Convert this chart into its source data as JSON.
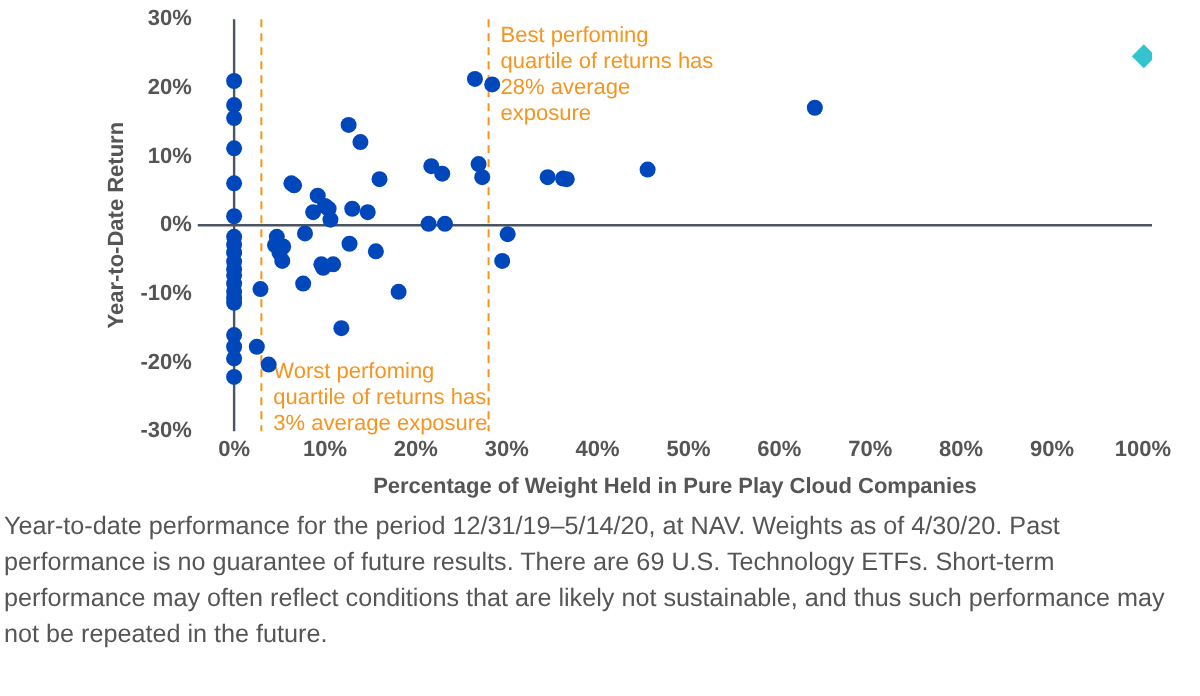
{
  "chart_data": {
    "type": "scatter",
    "xlabel": "Percentage of Weight Held in Pure Play Cloud Companies",
    "ylabel": "Year-to-Date Return",
    "xlim": [
      -4,
      101
    ],
    "ylim": [
      -30,
      30
    ],
    "xticks": [
      {
        "value": 0,
        "label": "0%"
      },
      {
        "value": 10,
        "label": "10%"
      },
      {
        "value": 20,
        "label": "20%"
      },
      {
        "value": 30,
        "label": "30%"
      },
      {
        "value": 40,
        "label": "40%"
      },
      {
        "value": 50,
        "label": "50%"
      },
      {
        "value": 60,
        "label": "60%"
      },
      {
        "value": 70,
        "label": "70%"
      },
      {
        "value": 80,
        "label": "80%"
      },
      {
        "value": 90,
        "label": "90%"
      },
      {
        "value": 100,
        "label": "100%"
      }
    ],
    "yticks": [
      {
        "value": -30,
        "label": "-30%"
      },
      {
        "value": -20,
        "label": "-20%"
      },
      {
        "value": -10,
        "label": "-10%"
      },
      {
        "value": 0,
        "label": "0%"
      },
      {
        "value": 10,
        "label": "10%"
      },
      {
        "value": 20,
        "label": "20%"
      },
      {
        "value": 30,
        "label": "30%"
      }
    ],
    "grid": false,
    "legend": false,
    "series": [
      {
        "color": "#0047bb",
        "marker": "circle",
        "x": [
          0,
          0,
          0,
          0,
          0,
          0,
          0,
          0,
          0,
          0,
          0,
          0,
          0,
          0,
          0,
          0,
          0,
          0,
          0,
          0,
          2.9,
          2.5,
          3.8,
          4.7,
          4.5,
          5.4,
          5,
          5.3,
          6.3,
          6.6,
          7.6,
          7.8,
          8.7,
          9.2,
          10,
          10.6,
          10.4,
          9.6,
          9.8,
          10.9,
          11.8,
          12.6,
          12.7,
          13,
          13.9,
          14.7,
          15.6,
          16,
          18.1,
          21.4,
          23.2,
          21.7,
          22.9,
          26.5,
          28.4,
          26.9,
          27.3,
          30.1,
          29.5,
          34.5,
          36.2,
          36.6,
          45.5,
          63.9
        ],
        "values": [
          21,
          17.5,
          15.6,
          11.2,
          6.1,
          1.3,
          -1.7,
          -2.8,
          -4,
          -5.3,
          -6.4,
          -7.3,
          -8.5,
          -9.7,
          -10.6,
          -11.3,
          -16,
          -17.7,
          -19.4,
          -22.1,
          -9.3,
          -17.7,
          -20.3,
          -1.7,
          -2.9,
          -3.1,
          -4,
          -5.2,
          6.1,
          5.8,
          -8.5,
          -1.2,
          1.9,
          4.3,
          2.8,
          0.8,
          2.4,
          -5.7,
          -6.2,
          -5.7,
          -15,
          14.6,
          -2.7,
          2.4,
          12.1,
          1.9,
          -3.8,
          6.7,
          -9.7,
          0.2,
          0.2,
          8.6,
          7.5,
          21.3,
          20.5,
          8.9,
          7,
          -1.3,
          -5.2,
          7,
          6.8,
          6.7,
          8.1,
          17.1
        ]
      },
      {
        "color": "#33c4d0",
        "marker": "diamond",
        "x": [
          100.1
        ],
        "values": [
          24.6
        ]
      }
    ],
    "ref_lines": [
      {
        "axis": "y",
        "value": 0,
        "color": "#4a5560",
        "line_style": "solid"
      },
      {
        "axis": "x",
        "value": 3,
        "label": "Worst perfoming quartile of returns has 3% average exposure",
        "color": "#f7941d",
        "line_style": "dashed"
      },
      {
        "axis": "x",
        "value": 28,
        "label": "Best perfoming quartile of returns has 28% average exposure",
        "color": "#f7941d",
        "line_style": "dashed"
      }
    ],
    "annotations": [
      "Year-to-date performance for the period 12/31/19–5/14/20, at NAV. Weights as of 4/30/20. Past performance is no guarantee of future results. There are 69 U.S. Technology ETFs. Short-term performance may often reflect conditions that are likely not sustainable, and thus such performance may not be repeated in the future."
    ]
  }
}
